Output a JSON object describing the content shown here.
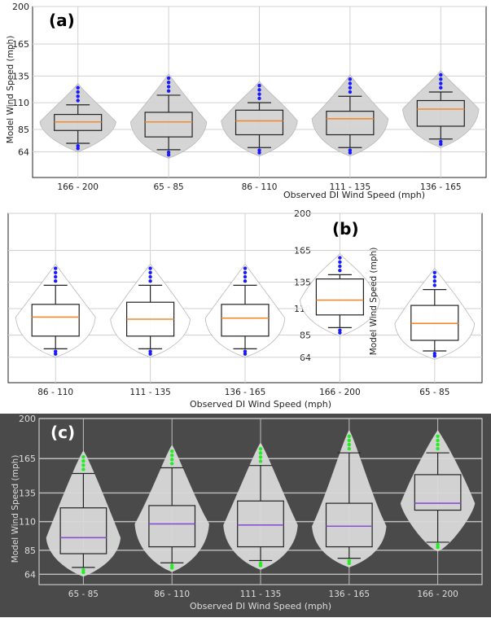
{
  "chart_data": [
    {
      "panel_label": "(a)",
      "type": "box-violin",
      "xlabel": "Observed DI Wind Speed (mph)",
      "ylabel": "Model Wind Speed (mph)",
      "ylim": [
        40,
        200
      ],
      "yticks": [
        64,
        85,
        110,
        135,
        165,
        200
      ],
      "grid": true,
      "categories": [
        "166 - 200",
        "65 - 85",
        "86 - 110",
        "111 - 135",
        "136 - 165"
      ],
      "boxes": [
        {
          "category": "166 - 200",
          "whisker_low": 72,
          "q1": 84,
          "median": 92,
          "q3": 99,
          "whisker_high": 108
        },
        {
          "category": "65 - 85",
          "whisker_low": 66,
          "q1": 78,
          "median": 92,
          "q3": 101,
          "whisker_high": 117
        },
        {
          "category": "86 - 110",
          "whisker_low": 68,
          "q1": 80,
          "median": 93,
          "q3": 103,
          "whisker_high": 110
        },
        {
          "category": "111 - 135",
          "whisker_low": 68,
          "q1": 80,
          "median": 95,
          "q3": 102,
          "whisker_high": 116
        },
        {
          "category": "136 - 165",
          "whisker_low": 76,
          "q1": 88,
          "median": 104,
          "q3": 112,
          "whisker_high": 120
        }
      ],
      "box_color": "#222222",
      "median_color": "#f28a30",
      "violin_color": "#d3d3d3",
      "outlier_color": "#1a1aff"
    },
    {
      "panel_label": "(b)",
      "type": "box-violin",
      "xlabel": "Observed DI Wind Speed (mph)",
      "ylabel": "Model Wind Speed (mph)",
      "ylim": [
        40,
        200
      ],
      "yticks": [
        64,
        85,
        110,
        135,
        165,
        200
      ],
      "grid": true,
      "categories": [
        "86 - 110",
        "111 - 135",
        "136 - 165",
        "166 - 200",
        "65 - 85"
      ],
      "boxes": [
        {
          "category": "86 - 110",
          "whisker_low": 72,
          "q1": 84,
          "median": 102,
          "q3": 114,
          "whisker_high": 132
        },
        {
          "category": "111 - 135",
          "whisker_low": 72,
          "q1": 84,
          "median": 100,
          "q3": 116,
          "whisker_high": 132
        },
        {
          "category": "136 - 165",
          "whisker_low": 72,
          "q1": 84,
          "median": 101,
          "q3": 114,
          "whisker_high": 132
        },
        {
          "category": "166 - 200",
          "whisker_low": 92,
          "q1": 104,
          "median": 118,
          "q3": 138,
          "whisker_high": 142
        },
        {
          "category": "65 - 85",
          "whisker_low": 70,
          "q1": 80,
          "median": 96,
          "q3": 113,
          "whisker_high": 128
        }
      ],
      "box_color": "#222222",
      "median_color": "#f28a30",
      "violin_color": "#ffffff",
      "outlier_color": "#1a1aff"
    },
    {
      "panel_label": "(c)",
      "type": "box-violin",
      "xlabel": "Observed DI Wind Speed (mph)",
      "ylabel": "Model Wind Speed (mph)",
      "ylim": [
        55,
        200
      ],
      "yticks": [
        64,
        85,
        110,
        135,
        165,
        200
      ],
      "grid": true,
      "categories": [
        "65 - 85",
        "86 - 110",
        "111 - 135",
        "136 - 165",
        "166 - 200"
      ],
      "boxes": [
        {
          "category": "65 - 85",
          "whisker_low": 70,
          "q1": 82,
          "median": 96,
          "q3": 122,
          "whisker_high": 152
        },
        {
          "category": "86 - 110",
          "whisker_low": 74,
          "q1": 88,
          "median": 108,
          "q3": 124,
          "whisker_high": 157
        },
        {
          "category": "111 - 135",
          "whisker_low": 76,
          "q1": 88,
          "median": 107,
          "q3": 128,
          "whisker_high": 159
        },
        {
          "category": "136 - 165",
          "whisker_low": 78,
          "q1": 88,
          "median": 106,
          "q3": 126,
          "whisker_high": 170
        },
        {
          "category": "166 - 200",
          "whisker_low": 92,
          "q1": 120,
          "median": 126,
          "q3": 151,
          "whisker_high": 170
        }
      ],
      "box_color": "#222222",
      "median_color": "#8a4fd6",
      "violin_color": "#d9d9d9",
      "outlier_color": "#22ee22",
      "background": "#4a4a4a"
    }
  ]
}
